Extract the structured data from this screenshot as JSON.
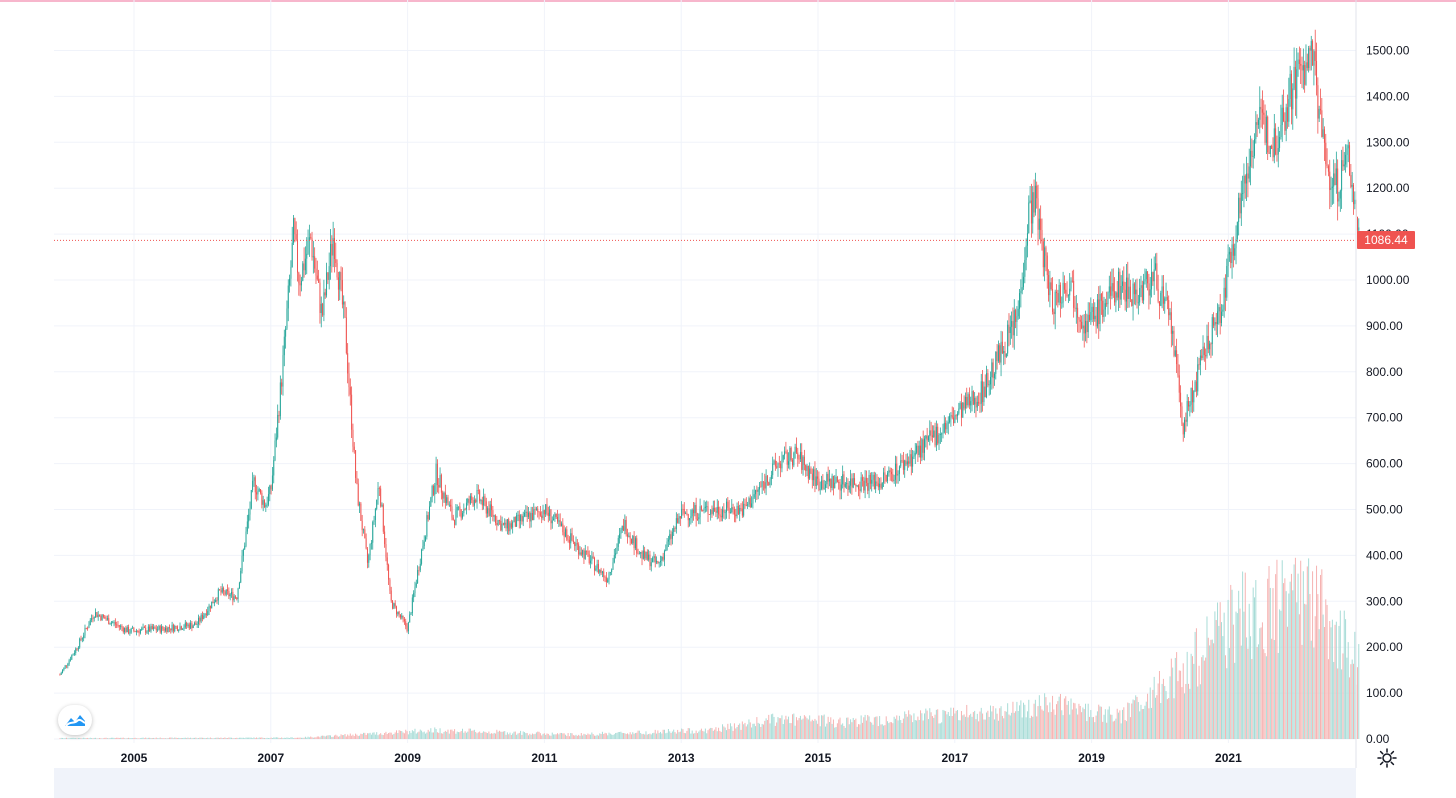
{
  "colors": {
    "up": "#26a69a",
    "down": "#ef5350",
    "grid": "#f0f3fa",
    "price_line": "#ef5350",
    "volume_up": "#a8dcd7",
    "volume_down": "#f6b3b2",
    "text": "#131722"
  },
  "icons": {
    "logo": "tradingview-logo-icon",
    "settings": "gear-icon"
  },
  "chart_data": {
    "type": "candlestick",
    "title": "",
    "xlabel": "",
    "ylabel": "",
    "ylim": [
      0,
      1550
    ],
    "grid": true,
    "x_ticks": [
      "2005",
      "2007",
      "2009",
      "2011",
      "2013",
      "2015",
      "2017",
      "2019",
      "2021"
    ],
    "y_ticks": [
      "0.00",
      "100.00",
      "200.00",
      "300.00",
      "400.00",
      "500.00",
      "600.00",
      "700.00",
      "800.00",
      "900.00",
      "1000.00",
      "1100.00",
      "1200.00",
      "1300.00",
      "1400.00",
      "1500.00"
    ],
    "last_price": "1086.44",
    "series": [
      {
        "kind": "price",
        "points": [
          [
            "2003-12",
            140
          ],
          [
            "2004-03",
            200
          ],
          [
            "2004-06",
            275
          ],
          [
            "2004-09",
            255
          ],
          [
            "2004-12",
            235
          ],
          [
            "2005-06",
            240
          ],
          [
            "2005-12",
            250
          ],
          [
            "2006-04",
            320
          ],
          [
            "2006-07",
            310
          ],
          [
            "2006-10",
            560
          ],
          [
            "2006-12",
            510
          ],
          [
            "2007-01",
            540
          ],
          [
            "2007-03",
            800
          ],
          [
            "2007-05",
            1100
          ],
          [
            "2007-06",
            1000
          ],
          [
            "2007-08",
            1090
          ],
          [
            "2007-10",
            920
          ],
          [
            "2007-12",
            1100
          ],
          [
            "2008-02",
            900
          ],
          [
            "2008-04",
            550
          ],
          [
            "2008-06",
            380
          ],
          [
            "2008-08",
            560
          ],
          [
            "2008-10",
            300
          ],
          [
            "2009-01",
            240
          ],
          [
            "2009-03",
            380
          ],
          [
            "2009-06",
            580
          ],
          [
            "2009-09",
            480
          ],
          [
            "2010-01",
            530
          ],
          [
            "2010-06",
            460
          ],
          [
            "2011-01",
            500
          ],
          [
            "2011-06",
            430
          ],
          [
            "2011-12",
            350
          ],
          [
            "2012-03",
            470
          ],
          [
            "2012-06",
            400
          ],
          [
            "2012-09",
            380
          ],
          [
            "2013-01",
            490
          ],
          [
            "2013-06",
            500
          ],
          [
            "2013-12",
            500
          ],
          [
            "2014-06",
            600
          ],
          [
            "2014-09",
            620
          ],
          [
            "2015-01",
            560
          ],
          [
            "2015-06",
            560
          ],
          [
            "2015-12",
            560
          ],
          [
            "2016-06",
            620
          ],
          [
            "2016-12",
            690
          ],
          [
            "2017-06",
            760
          ],
          [
            "2017-12",
            920
          ],
          [
            "2018-02",
            1150
          ],
          [
            "2018-03",
            1180
          ],
          [
            "2018-06",
            950
          ],
          [
            "2018-09",
            1000
          ],
          [
            "2018-12",
            900
          ],
          [
            "2019-06",
            990
          ],
          [
            "2019-09",
            970
          ],
          [
            "2019-12",
            1010
          ],
          [
            "2020-03",
            900
          ],
          [
            "2020-05",
            680
          ],
          [
            "2020-09",
            850
          ],
          [
            "2020-12",
            950
          ],
          [
            "2021-02",
            1100
          ],
          [
            "2021-06",
            1350
          ],
          [
            "2021-09",
            1300
          ],
          [
            "2022-01",
            1450
          ],
          [
            "2022-04",
            1480
          ],
          [
            "2022-06",
            1250
          ],
          [
            "2022-08",
            1200
          ],
          [
            "2022-10",
            1270
          ],
          [
            "2022-12",
            1086
          ]
        ]
      },
      {
        "kind": "volume",
        "points": [
          [
            "2004-01",
            2
          ],
          [
            "2007-06",
            3
          ],
          [
            "2009-06",
            20
          ],
          [
            "2011-06",
            10
          ],
          [
            "2013-06",
            20
          ],
          [
            "2014-06",
            45
          ],
          [
            "2015-06",
            40
          ],
          [
            "2017-06",
            60
          ],
          [
            "2018-06",
            80
          ],
          [
            "2019-06",
            50
          ],
          [
            "2020-06",
            170
          ],
          [
            "2021-03",
            280
          ],
          [
            "2021-09",
            300
          ],
          [
            "2022-03",
            330
          ],
          [
            "2022-09",
            220
          ],
          [
            "2022-12",
            180
          ]
        ]
      }
    ]
  }
}
